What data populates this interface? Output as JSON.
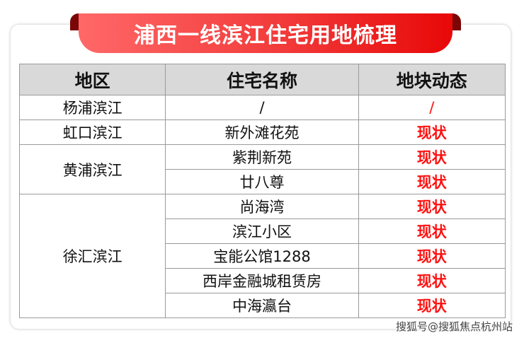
{
  "title": "浦西一线滨江住宅用地梳理",
  "colors": {
    "ribbon_start": "#ff6868",
    "ribbon_end": "#e80808",
    "status": "#ff1010",
    "header_bg": "#d9d9d9"
  },
  "table": {
    "headers": [
      "地区",
      "住宅名称",
      "地块动态"
    ],
    "groups": [
      {
        "region": "杨浦滨江",
        "rows": [
          {
            "name": "/",
            "status": "/"
          }
        ]
      },
      {
        "region": "虹口滨江",
        "rows": [
          {
            "name": "新外滩花苑",
            "status": "现状"
          }
        ]
      },
      {
        "region": "黄浦滨江",
        "rows": [
          {
            "name": "紫荆新苑",
            "status": "现状"
          },
          {
            "name": "廿八尊",
            "status": "现状"
          }
        ]
      },
      {
        "region": "徐汇滨江",
        "rows": [
          {
            "name": "尚海湾",
            "status": "现状"
          },
          {
            "name": "滨江小区",
            "status": "现状"
          },
          {
            "name": "宝能公馆1288",
            "status": "现状"
          },
          {
            "name": "西岸金融城租赁房",
            "status": "现状"
          },
          {
            "name": "中海瀛台",
            "status": "现状"
          }
        ]
      }
    ]
  },
  "watermark": "搜狐号@搜狐焦点杭州站"
}
